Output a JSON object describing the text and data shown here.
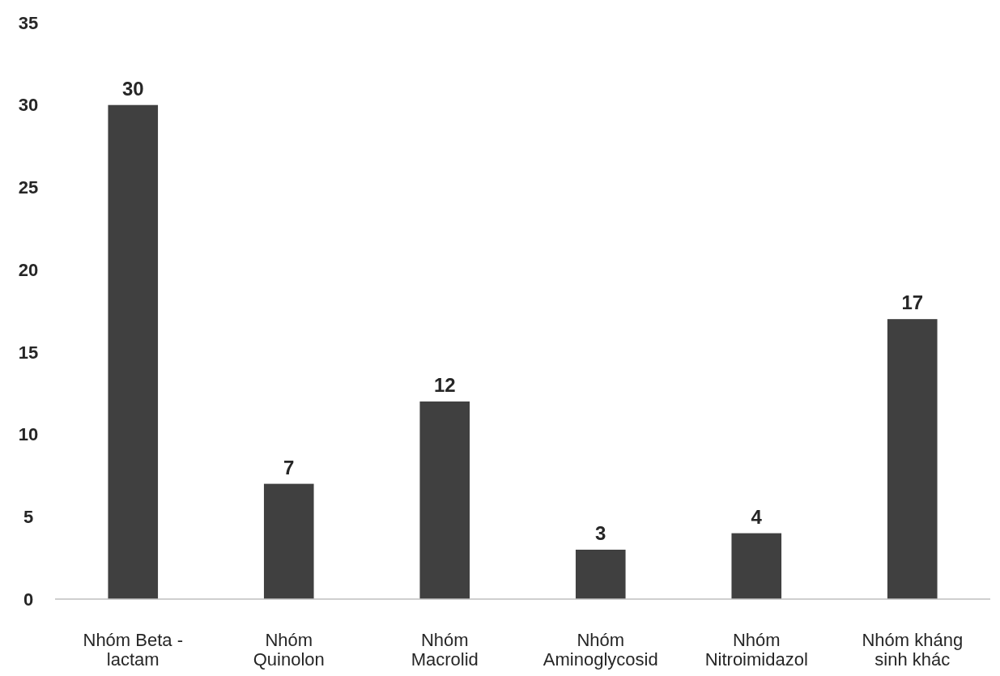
{
  "chart_data": {
    "type": "bar",
    "categories": [
      "Nhóm Beta - lactam",
      "Nhóm Quinolon",
      "Nhóm Macrolid",
      "Nhóm Aminoglycosid",
      "Nhóm Nitroimidazol",
      "Nhóm kháng sinh khác"
    ],
    "values": [
      30,
      7,
      12,
      3,
      4,
      17
    ],
    "color": "#404040",
    "ylim": [
      0,
      35
    ],
    "yticks": [
      0,
      5,
      10,
      15,
      20,
      25,
      30,
      35
    ],
    "data_labels": true,
    "grid": false
  }
}
